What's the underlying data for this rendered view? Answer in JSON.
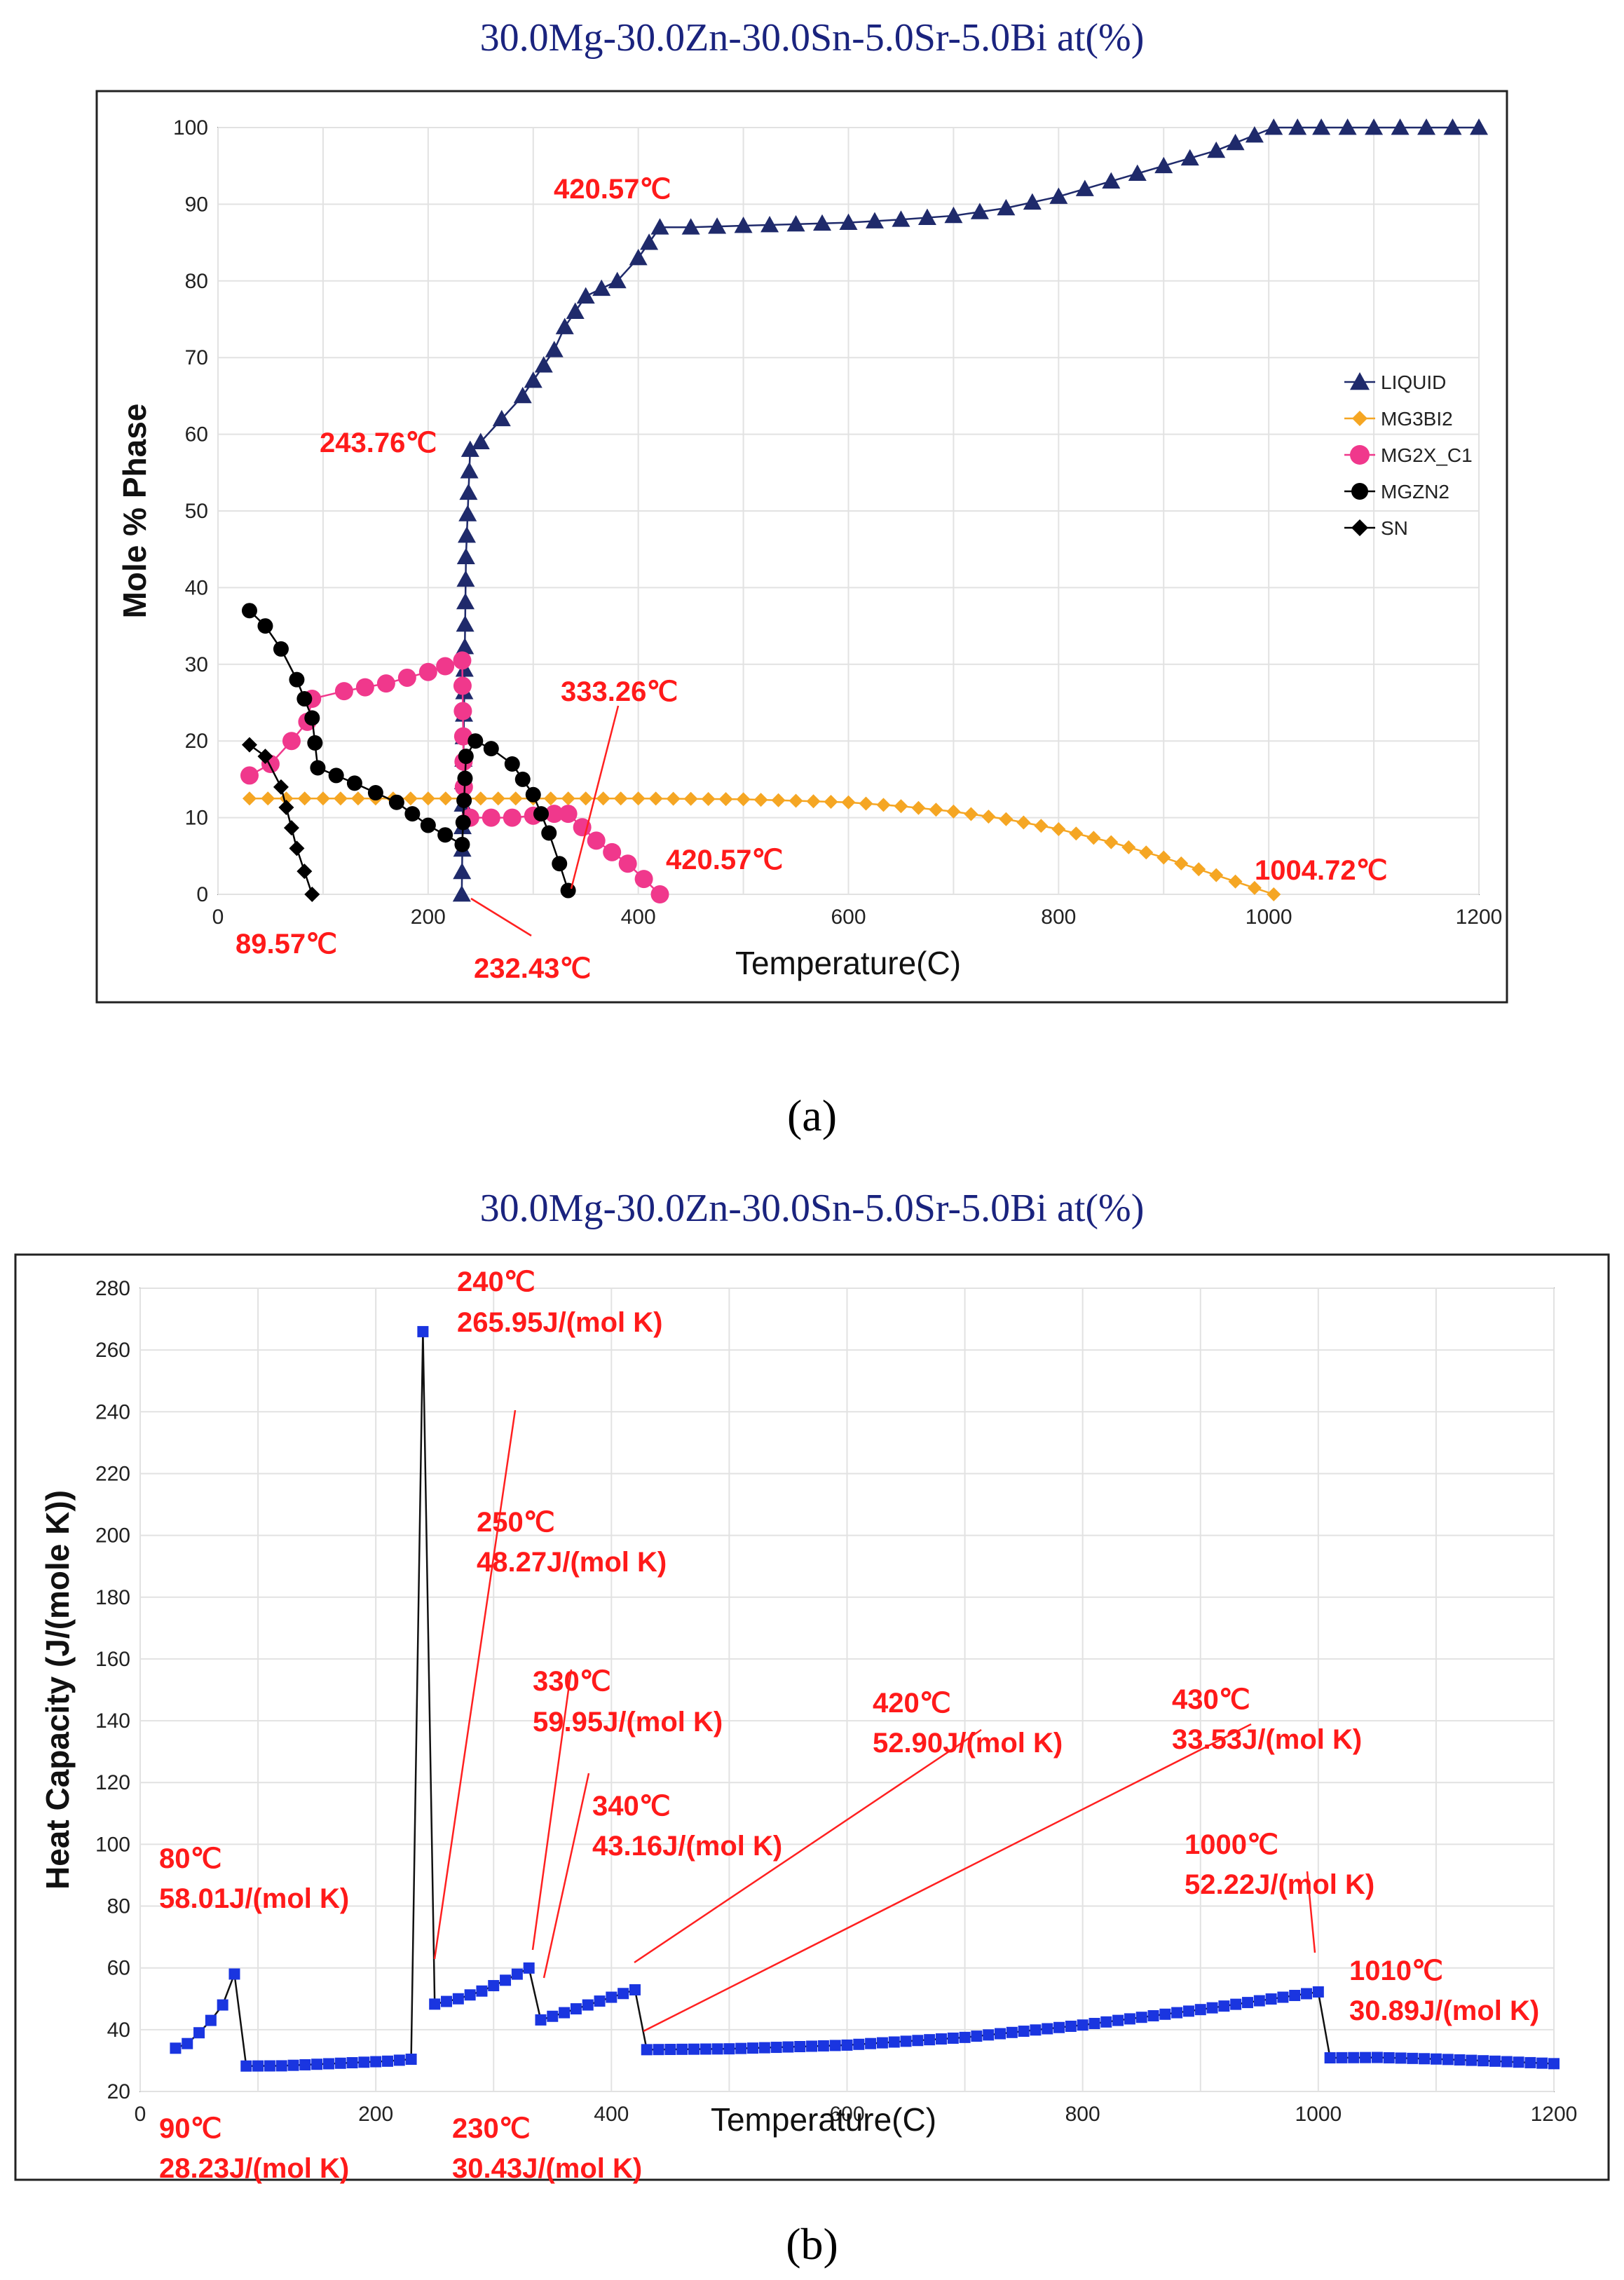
{
  "chart_data": [
    {
      "type": "line",
      "title": "30.0Mg-30.0Zn-30.0Sn-5.0Sr-5.0Bi at(%)",
      "panel_label": "(a)",
      "xlabel": "Temperature(C)",
      "ylabel": "Mole % Phase",
      "xlim": [
        0,
        1200
      ],
      "ylim": [
        0,
        100
      ],
      "xticks": [
        "0",
        "200",
        "400",
        "600",
        "800",
        "1000",
        "1200"
      ],
      "yticks": [
        "0",
        "10",
        "20",
        "30",
        "40",
        "50",
        "60",
        "70",
        "80",
        "90",
        "100"
      ],
      "legend_position": "right",
      "series": [
        {
          "name": "LIQUID",
          "color": "#1f2a6b",
          "marker": "triangle",
          "points": [
            [
              232,
              0
            ],
            [
              236,
              44
            ],
            [
              240,
              58
            ],
            [
              250,
              59
            ],
            [
              270,
              62
            ],
            [
              290,
              65
            ],
            [
              310,
              69
            ],
            [
              320,
              71
            ],
            [
              330,
              74
            ],
            [
              340,
              76
            ],
            [
              350,
              78
            ],
            [
              380,
              80
            ],
            [
              400,
              83
            ],
            [
              420.57,
              87
            ],
            [
              450,
              87
            ],
            [
              500,
              87.2
            ],
            [
              550,
              87.4
            ],
            [
              600,
              87.6
            ],
            [
              650,
              88
            ],
            [
              700,
              88.5
            ],
            [
              750,
              89.5
            ],
            [
              800,
              91
            ],
            [
              850,
              93
            ],
            [
              900,
              95
            ],
            [
              950,
              97
            ],
            [
              1004.72,
              100
            ],
            [
              1050,
              100
            ],
            [
              1100,
              100
            ],
            [
              1150,
              100
            ],
            [
              1200,
              100
            ]
          ]
        },
        {
          "name": "MG3BI2",
          "color": "#f5a623",
          "marker": "diamond",
          "points": [
            [
              30,
              12.5
            ],
            [
              100,
              12.5
            ],
            [
              200,
              12.5
            ],
            [
              300,
              12.5
            ],
            [
              400,
              12.5
            ],
            [
              500,
              12.4
            ],
            [
              600,
              12
            ],
            [
              650,
              11.5
            ],
            [
              700,
              10.8
            ],
            [
              750,
              9.8
            ],
            [
              800,
              8.5
            ],
            [
              850,
              6.8
            ],
            [
              900,
              4.8
            ],
            [
              950,
              2.5
            ],
            [
              1004.72,
              0
            ]
          ]
        },
        {
          "name": "MG2X_C1",
          "color": "#f0388c",
          "marker": "circle",
          "points": [
            [
              30,
              15.5
            ],
            [
              50,
              17
            ],
            [
              70,
              20
            ],
            [
              85,
              22.5
            ],
            [
              89.57,
              25.5
            ],
            [
              120,
              26.5
            ],
            [
              160,
              27.5
            ],
            [
              200,
              29
            ],
            [
              232.43,
              30.5
            ],
            [
              234,
              14
            ],
            [
              240,
              10
            ],
            [
              280,
              10
            ],
            [
              320,
              10.5
            ],
            [
              333.26,
              10.5
            ],
            [
              360,
              7
            ],
            [
              390,
              4
            ],
            [
              420.57,
              0
            ]
          ]
        },
        {
          "name": "MGZN2",
          "color": "#000000",
          "marker": "circle",
          "points": [
            [
              30,
              37
            ],
            [
              45,
              35
            ],
            [
              60,
              32
            ],
            [
              75,
              28
            ],
            [
              89.57,
              23
            ],
            [
              95,
              16.5
            ],
            [
              130,
              14.5
            ],
            [
              170,
              12
            ],
            [
              200,
              9
            ],
            [
              232.43,
              6.5
            ],
            [
              236,
              18
            ],
            [
              245,
              20
            ],
            [
              260,
              19
            ],
            [
              280,
              17
            ],
            [
              300,
              13
            ],
            [
              315,
              8
            ],
            [
              325,
              4
            ],
            [
              333.26,
              0.5
            ]
          ]
        },
        {
          "name": "SN",
          "color": "#000000",
          "marker": "diamond",
          "points": [
            [
              30,
              19.5
            ],
            [
              45,
              18
            ],
            [
              60,
              14
            ],
            [
              75,
              6
            ],
            [
              89.57,
              0
            ]
          ]
        }
      ],
      "annotations": [
        "420.57℃",
        "243.76℃",
        "333.26℃",
        "420.57℃",
        "1004.72℃",
        "89.57℃",
        "232.43℃"
      ]
    },
    {
      "type": "line",
      "title": "30.0Mg-30.0Zn-30.0Sn-5.0Sr-5.0Bi at(%)",
      "panel_label": "(b)",
      "xlabel": "Temperature(C)",
      "ylabel": "Heat Capacity (J/(mole K))",
      "xlim": [
        0,
        1200
      ],
      "ylim": [
        20,
        280
      ],
      "xticks": [
        "0",
        "200",
        "400",
        "600",
        "800",
        "1000",
        "1200"
      ],
      "yticks": [
        "20",
        "40",
        "60",
        "80",
        "100",
        "120",
        "140",
        "160",
        "180",
        "200",
        "220",
        "240",
        "260",
        "280"
      ],
      "series": [
        {
          "name": "Heat Capacity",
          "color": "#1a35e0",
          "points": [
            [
              30,
              34
            ],
            [
              40,
              35.5
            ],
            [
              50,
              39
            ],
            [
              60,
              43
            ],
            [
              70,
              48
            ],
            [
              80,
              58.01
            ],
            [
              90,
              28.23
            ],
            [
              120,
              28.3
            ],
            [
              150,
              28.8
            ],
            [
              180,
              29.3
            ],
            [
              210,
              29.8
            ],
            [
              230,
              30.43
            ],
            [
              240,
              265.95
            ],
            [
              250,
              48.27
            ],
            [
              270,
              50
            ],
            [
              290,
              52.5
            ],
            [
              310,
              56
            ],
            [
              330,
              59.95
            ],
            [
              340,
              43.16
            ],
            [
              360,
              45.5
            ],
            [
              380,
              48
            ],
            [
              400,
              50.5
            ],
            [
              420,
              52.9
            ],
            [
              430,
              33.53
            ],
            [
              500,
              33.8
            ],
            [
              600,
              35
            ],
            [
              700,
              37.5
            ],
            [
              800,
              41.5
            ],
            [
              900,
              46.5
            ],
            [
              1000,
              52.22
            ],
            [
              1010,
              30.89
            ],
            [
              1050,
              31
            ],
            [
              1100,
              30.5
            ],
            [
              1150,
              29.8
            ],
            [
              1200,
              29
            ]
          ]
        }
      ],
      "annotations": [
        {
          "temp": "240℃",
          "value": "265.95J/(mol K)"
        },
        {
          "temp": "250℃",
          "value": "48.27J/(mol K)"
        },
        {
          "temp": "330℃",
          "value": "59.95J/(mol K)"
        },
        {
          "temp": "340℃",
          "value": "43.16J/(mol K)"
        },
        {
          "temp": "420℃",
          "value": "52.90J/(mol K)"
        },
        {
          "temp": "430℃",
          "value": "33.53J/(mol K)"
        },
        {
          "temp": "80℃",
          "value": "58.01J/(mol K)"
        },
        {
          "temp": "1000℃",
          "value": "52.22J/(mol K)"
        },
        {
          "temp": "1010℃",
          "value": "30.89J/(mol K)"
        },
        {
          "temp": "90℃",
          "value": "28.23J/(mol K)"
        },
        {
          "temp": "230℃",
          "value": "30.43J/(mol K)"
        }
      ]
    }
  ]
}
